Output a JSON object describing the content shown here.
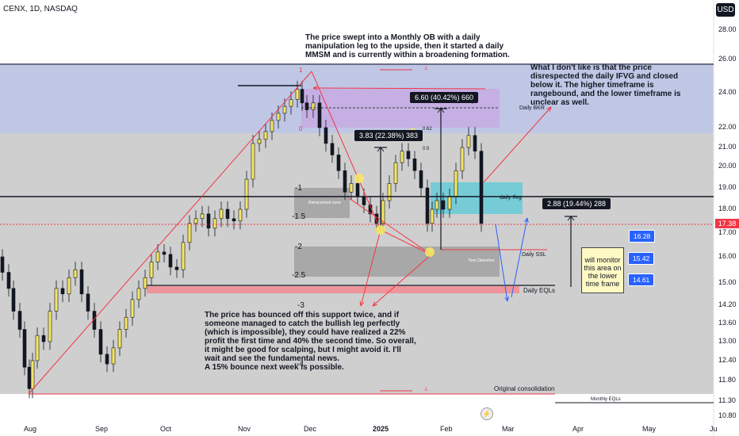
{
  "symbol": "CENX, 1D, NASDAQ",
  "currency": "USD",
  "current_price": "17.38",
  "notes": {
    "top": "The price swept into a Monthly OB with a daily manipulation leg to the upside, then it started a daily MMSM and is currently within a broadening formation.",
    "right": "What I don't like is that the price disrespected the daily IFVG and closed below it. The higher timeframe is rangebound, and the lower timeframe is unclear as well.",
    "bottom": "The price has bounced off this support twice, and if someone managed to catch the bullish leg perfectly (which is impossible), they could have realized a 22% profit the first time and 40% the second time. So overall, it might be good for scalping, but I might avoid it. I'll wait and see the fundamental news.\nA 15% bounce next week is possible.",
    "monitor": "will monitor this area on the lower time frame"
  },
  "measures": {
    "m1": "6.60 (40.42%) 660",
    "m2": "3.83 (22.38%) 383",
    "m3": "2.88 (19.44%) 288"
  },
  "targets": [
    "16.28",
    "15.42",
    "14.61"
  ],
  "labels": {
    "daily_bkr": "Daily BKR",
    "daily_ifvg": "daily Ifvg",
    "daily_ssl": "Daily SSL",
    "daily_eqls": "Daily EQLs",
    "orig_cons": "Original consolidation",
    "monthly_eqls": "Monthly EQLs",
    "retracement": "Retracement zone",
    "time_distortion": "Time Distortion",
    "fib_1": "1",
    "fib_0": "0",
    "fib_062": "0.62",
    "fib_05": "0.5",
    "fib_g": "g",
    "neg1": "-1"
  },
  "std_levels": [
    "-1",
    "-1.5",
    "-2",
    "-2.5",
    "-3",
    "-4"
  ],
  "chart_data": {
    "type": "candlestick",
    "title": "CENX, 1D, NASDAQ",
    "x_ticks": [
      "Aug",
      "Sep",
      "Oct",
      "Nov",
      "Dec",
      "2025",
      "Feb",
      "Mar",
      "Apr",
      "May",
      "Ju"
    ],
    "y_ticks": [
      28.0,
      26.0,
      24.0,
      22.0,
      21.0,
      20.0,
      19.0,
      18.0,
      17.0,
      16.0,
      15.0,
      14.2,
      13.6,
      13.0,
      12.4,
      11.8,
      11.3,
      10.8
    ],
    "y_scale": "log",
    "last_price": 17.38,
    "colors": {
      "bull": "#f5e663",
      "bear": "#131722"
    }
  }
}
